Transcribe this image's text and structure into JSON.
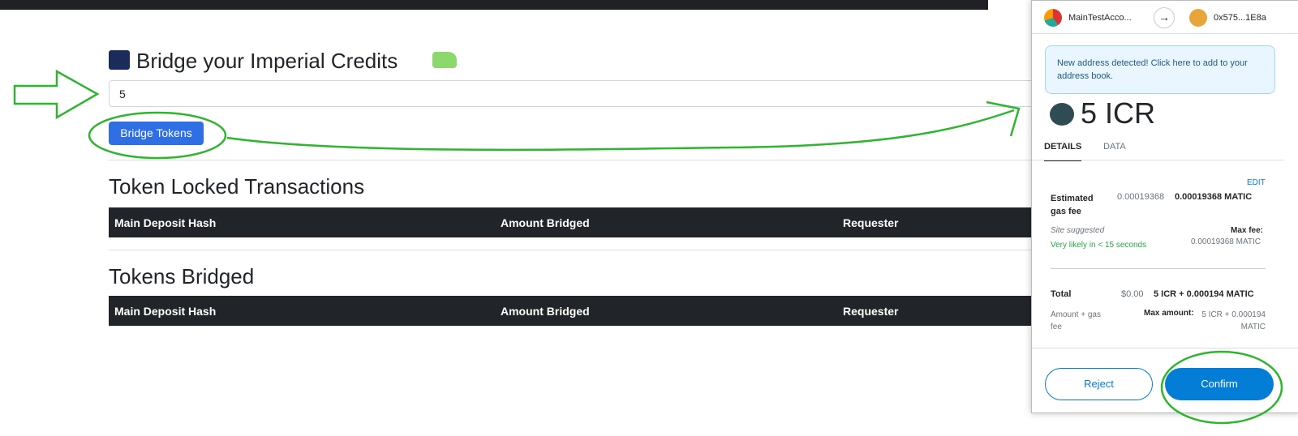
{
  "main": {
    "title": "Bridge your Imperial Credits",
    "input_value": "5",
    "button": "Bridge Tokens",
    "sections": [
      {
        "title": "Token Locked Transactions",
        "columns": [
          "Main Deposit Hash",
          "Amount Bridged",
          "Requester"
        ]
      },
      {
        "title": "Tokens Bridged",
        "columns": [
          "Main Deposit Hash",
          "Amount Bridged",
          "Requester"
        ]
      }
    ]
  },
  "wallet": {
    "from_account": "MainTestAcco...",
    "to_address": "0x575...1E8a",
    "notice": "New address detected! Click here to add to your address book.",
    "amount": "5 ICR",
    "tabs": [
      "DETAILS",
      "DATA"
    ],
    "edit": "EDIT",
    "gas": {
      "label": "Estimated gas fee",
      "fiat": "0.00019368",
      "amount": "0.00019368 MATIC",
      "site_suggested": "Site suggested",
      "speed": "Very likely in < 15 seconds",
      "max_fee_label": "Max fee:",
      "max_fee": "0.00019368 MATIC"
    },
    "total": {
      "label": "Total",
      "fiat": "$0.00",
      "amount": "5 ICR + 0.000194 MATIC",
      "sub_label": "Amount + gas fee",
      "max_amount_label": "Max amount:",
      "max_amount": "5 ICR + 0.000194 MATIC"
    },
    "buttons": {
      "reject": "Reject",
      "confirm": "Confirm"
    }
  }
}
